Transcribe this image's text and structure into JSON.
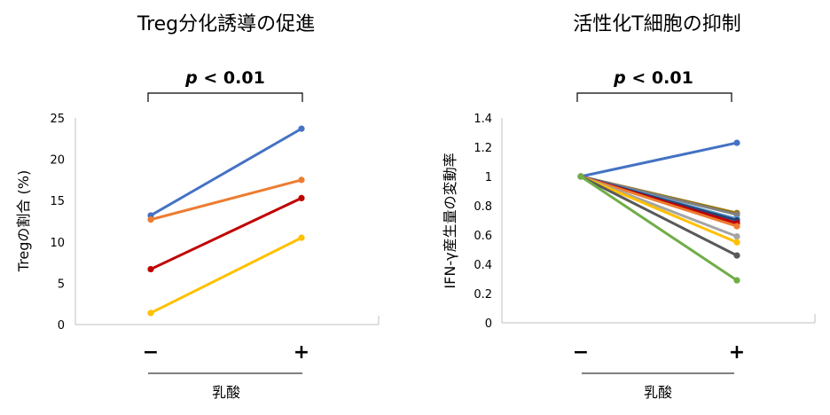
{
  "chart_data": [
    {
      "type": "line",
      "title": "Treg分化誘導の促進",
      "significance": "p < 0.01",
      "categories": [
        "−",
        "+"
      ],
      "xlabel": "乳酸",
      "ylabel": "Tregの割合 (%)",
      "ylim": [
        0,
        25
      ],
      "yticks": [
        "0",
        "5",
        "10",
        "15",
        "20",
        "25"
      ],
      "grid": false,
      "series": [
        {
          "color": "#4472C4",
          "values": [
            13.2,
            23.7
          ]
        },
        {
          "color": "#ED7D31",
          "values": [
            12.7,
            17.5
          ]
        },
        {
          "color": "#C00000",
          "values": [
            6.7,
            15.3
          ]
        },
        {
          "color": "#FFC000",
          "values": [
            1.4,
            10.5
          ]
        }
      ]
    },
    {
      "type": "line",
      "title": "活性化T細胞の抑制",
      "significance": "p < 0.01",
      "categories": [
        "−",
        "+"
      ],
      "xlabel": "乳酸",
      "ylabel": "IFN-γ産生量の変動率",
      "ylim": [
        0,
        1.4
      ],
      "yticks": [
        "0",
        "0.2",
        "0.4",
        "0.6",
        "0.8",
        "1",
        "1.2",
        "1.4"
      ],
      "grid": false,
      "series": [
        {
          "color": "#4472C4",
          "values": [
            1.0,
            1.23
          ]
        },
        {
          "color": "#997300",
          "values": [
            1.0,
            0.75
          ]
        },
        {
          "color": "#7F7F7F",
          "values": [
            1.0,
            0.74
          ]
        },
        {
          "color": "#5B9BD5",
          "values": [
            1.0,
            0.71
          ]
        },
        {
          "color": "#264478",
          "values": [
            1.0,
            0.7
          ]
        },
        {
          "color": "#C00000",
          "values": [
            1.0,
            0.68
          ]
        },
        {
          "color": "#ED7D31",
          "values": [
            1.0,
            0.66
          ]
        },
        {
          "color": "#A5A5A5",
          "values": [
            1.0,
            0.59
          ]
        },
        {
          "color": "#FFC000",
          "values": [
            1.0,
            0.55
          ]
        },
        {
          "color": "#595959",
          "values": [
            1.0,
            0.46
          ]
        },
        {
          "color": "#70AD47",
          "values": [
            1.0,
            0.29
          ]
        }
      ]
    }
  ]
}
